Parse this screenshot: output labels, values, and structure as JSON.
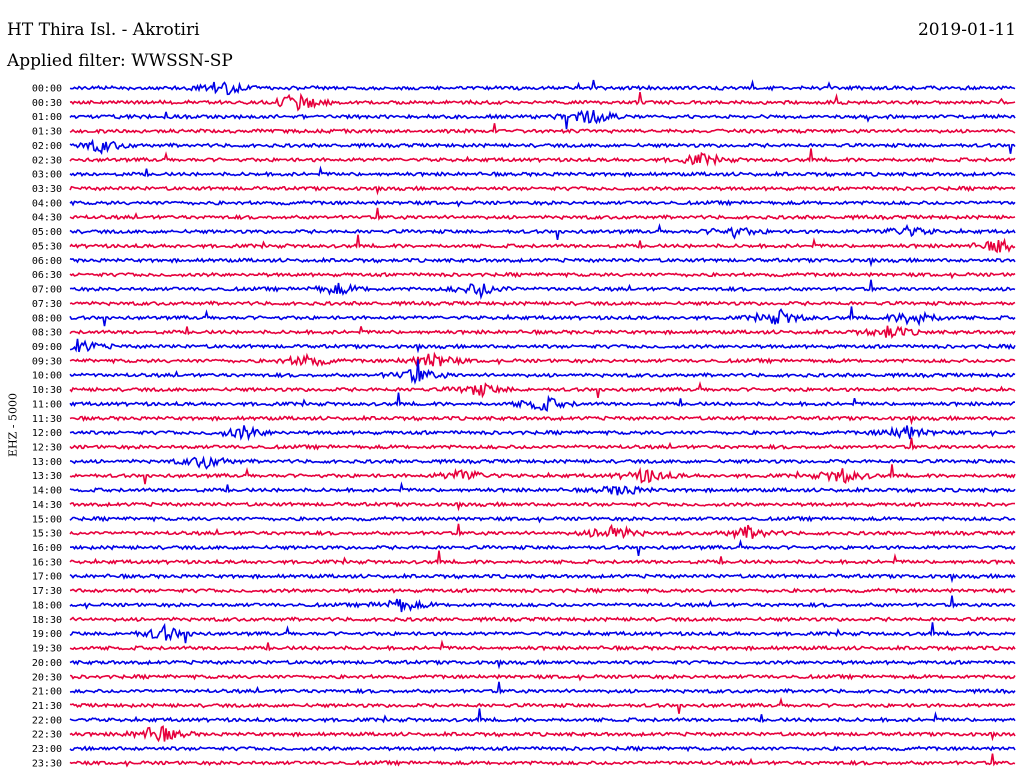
{
  "header": {
    "station": "HT Thira Isl. - Akrotiri",
    "date": "2019-01-11",
    "filter": "Applied filter: WWSSN-SP",
    "channel_label": "EHZ - 5000"
  },
  "colors": {
    "trace_a": "#0000e6",
    "trace_b": "#e6003c",
    "background": "#ffffff"
  },
  "chart_data": {
    "type": "helicorder",
    "title": "HT Thira Isl. - Akrotiri",
    "ylabel": "EHZ - 5000",
    "xlabel": "",
    "row_labels": [
      "00:00",
      "00:30",
      "01:00",
      "01:30",
      "02:00",
      "02:30",
      "03:00",
      "03:30",
      "04:00",
      "04:30",
      "05:00",
      "05:30",
      "06:00",
      "06:30",
      "07:00",
      "07:30",
      "08:00",
      "08:30",
      "09:00",
      "09:30",
      "10:00",
      "10:30",
      "11:00",
      "11:30",
      "12:00",
      "12:30",
      "13:00",
      "13:30",
      "14:00",
      "14:30",
      "15:00",
      "15:30",
      "16:00",
      "16:30",
      "17:00",
      "17:30",
      "18:00",
      "18:30",
      "19:00",
      "19:30",
      "20:00",
      "20:30",
      "21:00",
      "21:30",
      "22:00",
      "22:30",
      "23:00",
      "23:30"
    ],
    "row_minutes": 30,
    "trace_colors": [
      "#0000e6",
      "#e6003c"
    ],
    "events": [
      {
        "row": 0,
        "minute": 4.8,
        "amplitude": 0.9
      },
      {
        "row": 1,
        "minute": 7.2,
        "amplitude": 1.0
      },
      {
        "row": 2,
        "minute": 16.5,
        "amplitude": 0.8
      },
      {
        "row": 4,
        "minute": 1.0,
        "amplitude": 0.7
      },
      {
        "row": 5,
        "minute": 20.0,
        "amplitude": 0.6
      },
      {
        "row": 10,
        "minute": 21.0,
        "amplitude": 0.6
      },
      {
        "row": 10,
        "minute": 26.5,
        "amplitude": 0.6
      },
      {
        "row": 11,
        "minute": 29.5,
        "amplitude": 0.7
      },
      {
        "row": 14,
        "minute": 8.5,
        "amplitude": 0.6
      },
      {
        "row": 14,
        "minute": 13.0,
        "amplitude": 0.8
      },
      {
        "row": 16,
        "minute": 22.5,
        "amplitude": 0.8
      },
      {
        "row": 16,
        "minute": 26.8,
        "amplitude": 0.9
      },
      {
        "row": 17,
        "minute": 26.0,
        "amplitude": 0.7
      },
      {
        "row": 18,
        "minute": 0.2,
        "amplitude": 0.8
      },
      {
        "row": 19,
        "minute": 7.5,
        "amplitude": 0.7
      },
      {
        "row": 19,
        "minute": 11.5,
        "amplitude": 0.9
      },
      {
        "row": 20,
        "minute": 11.0,
        "amplitude": 0.8
      },
      {
        "row": 21,
        "minute": 13.0,
        "amplitude": 0.7
      },
      {
        "row": 22,
        "minute": 15.0,
        "amplitude": 0.8
      },
      {
        "row": 24,
        "minute": 5.5,
        "amplitude": 0.7
      },
      {
        "row": 24,
        "minute": 26.5,
        "amplitude": 0.8
      },
      {
        "row": 26,
        "minute": 4.3,
        "amplitude": 0.7
      },
      {
        "row": 27,
        "minute": 12.5,
        "amplitude": 0.7
      },
      {
        "row": 27,
        "minute": 18.3,
        "amplitude": 0.8
      },
      {
        "row": 27,
        "minute": 24.5,
        "amplitude": 0.8
      },
      {
        "row": 28,
        "minute": 17.5,
        "amplitude": 0.6
      },
      {
        "row": 31,
        "minute": 17.2,
        "amplitude": 1.0
      },
      {
        "row": 31,
        "minute": 21.5,
        "amplitude": 0.7
      },
      {
        "row": 36,
        "minute": 10.5,
        "amplitude": 0.7
      },
      {
        "row": 38,
        "minute": 3.0,
        "amplitude": 0.8
      },
      {
        "row": 45,
        "minute": 2.8,
        "amplitude": 1.0
      }
    ]
  }
}
